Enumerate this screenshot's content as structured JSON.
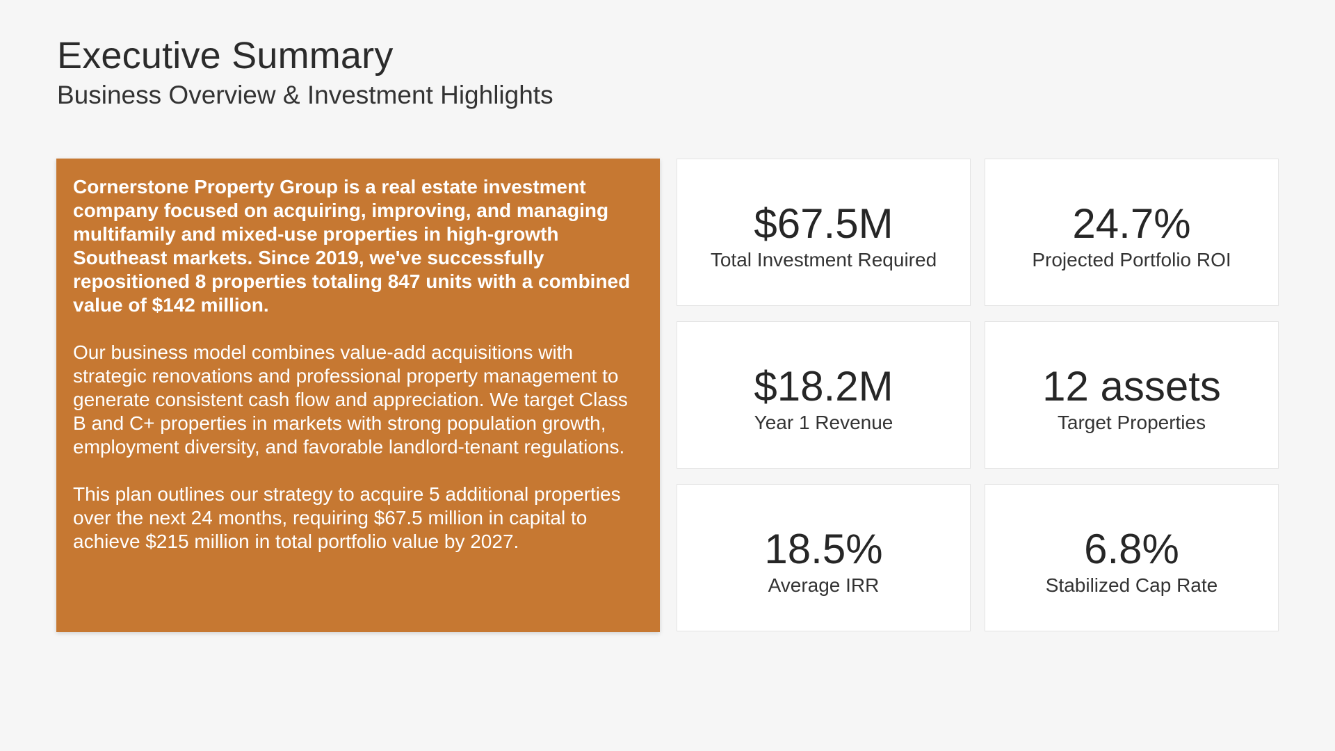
{
  "header": {
    "title": "Executive Summary",
    "subtitle": "Business Overview & Investment Highlights"
  },
  "overview": {
    "accent_color": "#c67832",
    "paragraphs": [
      "Cornerstone Property Group is a real estate investment company focused on acquiring, improving, and managing multifamily and mixed-use properties in high-growth Southeast markets. Since 2019, we've successfully repositioned 8 properties totaling 847 units with a combined value of $142 million.",
      "Our business model combines value-add acquisitions with strategic renovations and professional property management to generate consistent cash flow and appreciation. We target Class B and C+ properties in markets with strong population growth, employment diversity, and favorable landlord-tenant regulations.",
      "This plan outlines our strategy to acquire 5 additional properties over the next 24 months, requiring $67.5 million in capital to achieve $215 million in total portfolio value by 2027."
    ]
  },
  "metrics": [
    {
      "value": "$67.5M",
      "label": "Total Investment Required"
    },
    {
      "value": "24.7%",
      "label": "Projected Portfolio ROI"
    },
    {
      "value": "$18.2M",
      "label": "Year 1 Revenue"
    },
    {
      "value": "12 assets",
      "label": "Target Properties"
    },
    {
      "value": "18.5%",
      "label": "Average IRR"
    },
    {
      "value": "6.8%",
      "label": "Stabilized Cap Rate"
    }
  ]
}
